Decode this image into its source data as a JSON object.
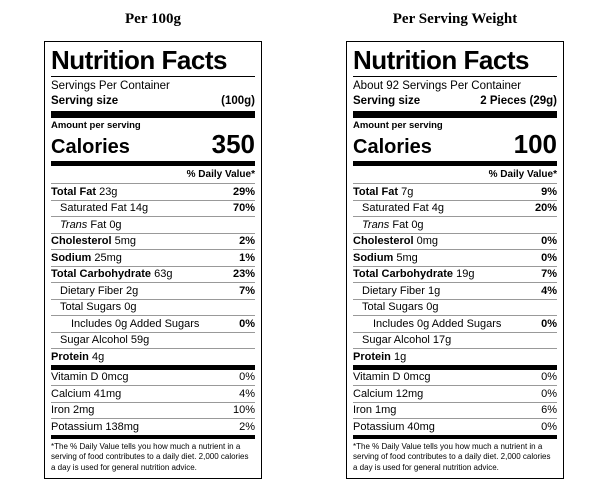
{
  "columns": [
    {
      "title": "Per 100g",
      "label": {
        "heading": "Nutrition Facts",
        "servings_per_container": "Servings Per Container",
        "serving_size_label": "Serving size",
        "serving_size_value": "(100g)",
        "amount_per_serving": "Amount per serving",
        "calories_label": "Calories",
        "calories_value": "350",
        "daily_value_header": "% Daily Value*",
        "nutrients": [
          {
            "bold": "Total Fat",
            "text": " 23g",
            "value": "29%",
            "value_bold": true,
            "indent": 0
          },
          {
            "text": "Saturated Fat 14g",
            "value": "70%",
            "value_bold": true,
            "indent": 1
          },
          {
            "italic": "Trans",
            "text": " Fat 0g",
            "value": "",
            "indent": 1
          },
          {
            "bold": "Cholesterol",
            "text": " 5mg",
            "value": "2%",
            "value_bold": true,
            "indent": 0
          },
          {
            "bold": "Sodium",
            "text": " 25mg",
            "value": "1%",
            "value_bold": true,
            "indent": 0
          },
          {
            "bold": "Total Carbohydrate",
            "text": " 63g",
            "value": "23%",
            "value_bold": true,
            "indent": 0
          },
          {
            "text": "Dietary Fiber 2g",
            "value": "7%",
            "value_bold": true,
            "indent": 1
          },
          {
            "text": "Total Sugars 0g",
            "value": "",
            "indent": 1
          },
          {
            "text": "Includes 0g Added Sugars",
            "value": "0%",
            "value_bold": true,
            "indent": 2
          },
          {
            "text": "Sugar Alcohol 59g",
            "value": "",
            "indent": 1
          },
          {
            "bold": "Protein",
            "text": " 4g",
            "value": "",
            "indent": 0
          }
        ],
        "vitamins": [
          {
            "text": "Vitamin D 0mcg",
            "value": "0%",
            "indent": 0
          },
          {
            "text": "Calcium 41mg",
            "value": "4%",
            "indent": 0
          },
          {
            "text": "Iron 2mg",
            "value": "10%",
            "indent": 0
          },
          {
            "text": "Potassium 138mg",
            "value": "2%",
            "indent": 0
          }
        ],
        "footnote": "*The % Daily Value tells you how much a nutrient in a serving of food contributes to a daily diet. 2,000 calories a day is used for general nutrition advice."
      }
    },
    {
      "title": "Per Serving Weight",
      "label": {
        "heading": "Nutrition Facts",
        "servings_per_container": "About 92 Servings Per Container",
        "serving_size_label": "Serving size",
        "serving_size_value": "2 Pieces (29g)",
        "amount_per_serving": "Amount per serving",
        "calories_label": "Calories",
        "calories_value": "100",
        "daily_value_header": "% Daily Value*",
        "nutrients": [
          {
            "bold": "Total Fat",
            "text": " 7g",
            "value": "9%",
            "value_bold": true,
            "indent": 0
          },
          {
            "text": "Saturated Fat 4g",
            "value": "20%",
            "value_bold": true,
            "indent": 1
          },
          {
            "italic": "Trans",
            "text": " Fat 0g",
            "value": "",
            "indent": 1
          },
          {
            "bold": "Cholesterol",
            "text": " 0mg",
            "value": "0%",
            "value_bold": true,
            "indent": 0
          },
          {
            "bold": "Sodium",
            "text": " 5mg",
            "value": "0%",
            "value_bold": true,
            "indent": 0
          },
          {
            "bold": "Total Carbohydrate",
            "text": " 19g",
            "value": "7%",
            "value_bold": true,
            "indent": 0
          },
          {
            "text": "Dietary Fiber 1g",
            "value": "4%",
            "value_bold": true,
            "indent": 1
          },
          {
            "text": "Total Sugars 0g",
            "value": "",
            "indent": 1
          },
          {
            "text": "Includes 0g Added Sugars",
            "value": "0%",
            "value_bold": true,
            "indent": 2
          },
          {
            "text": "Sugar Alcohol 17g",
            "value": "",
            "indent": 1
          },
          {
            "bold": "Protein",
            "text": " 1g",
            "value": "",
            "indent": 0
          }
        ],
        "vitamins": [
          {
            "text": "Vitamin D 0mcg",
            "value": "0%",
            "indent": 0
          },
          {
            "text": "Calcium 12mg",
            "value": "0%",
            "indent": 0
          },
          {
            "text": "Iron 1mg",
            "value": "6%",
            "indent": 0
          },
          {
            "text": "Potassium 40mg",
            "value": "0%",
            "indent": 0
          }
        ],
        "footnote": "*The % Daily Value tells you how much a nutrient in a serving of food contributes to a daily diet. 2,000 calories a day is used for general nutrition advice."
      }
    }
  ]
}
